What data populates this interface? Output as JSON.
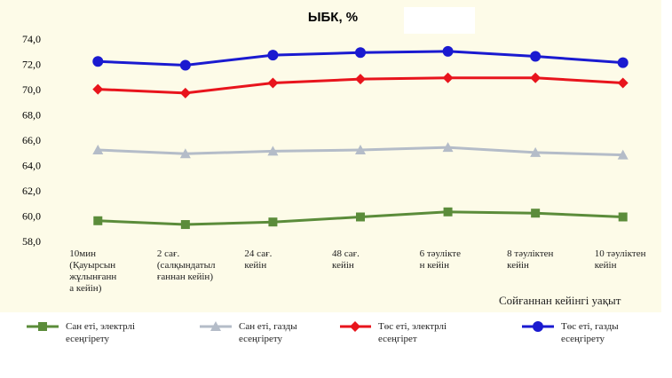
{
  "chart_data": {
    "type": "line",
    "title": "ЫБК, %",
    "categories": [
      "10мин\n(Қауырсын\nжұлынғанн\nа кейін)",
      "2 сағ.\n(салқындатыл\nғаннан кейін)",
      "24 сағ.\nкейін",
      "48 сағ.\nкейін",
      "6 тәуліктe\nн кейін",
      "8 тәуліктен\nкейін",
      "10 тәуліктен\nкейін"
    ],
    "x_label": "Сойғаннан кейінгі уақыт",
    "ylim": [
      58,
      74
    ],
    "yticks": [
      {
        "value": 58,
        "label": "58,0"
      },
      {
        "value": 60,
        "label": "60,0"
      },
      {
        "value": 62,
        "label": "62,0"
      },
      {
        "value": 64,
        "label": "64,0"
      },
      {
        "value": 66,
        "label": "66,0"
      },
      {
        "value": 68,
        "label": "68,0"
      },
      {
        "value": 70,
        "label": "70,0"
      },
      {
        "value": 72,
        "label": "72,0"
      },
      {
        "value": 74,
        "label": "74,0"
      }
    ],
    "series": [
      {
        "name": "Сан еті, электрлі есеңгірету",
        "color": "#5b8c3a",
        "marker": "square",
        "values": [
          59.7,
          59.4,
          59.6,
          60.0,
          60.4,
          60.3,
          60.0
        ]
      },
      {
        "name": "Сан еті, газды есеңгірету",
        "color": "#b4bcc8",
        "marker": "triangle",
        "values": [
          65.3,
          65.0,
          65.2,
          65.3,
          65.5,
          65.1,
          64.9
        ]
      },
      {
        "name": "Төс еті, электрлі есеңгірет",
        "color": "#e8141c",
        "marker": "diamond",
        "values": [
          70.1,
          69.8,
          70.6,
          70.9,
          71.0,
          71.0,
          70.6
        ]
      },
      {
        "name": "Төс еті, газды есеңгірету",
        "color": "#1a1ad0",
        "marker": "circle",
        "values": [
          72.3,
          72.0,
          72.8,
          73.0,
          73.1,
          72.7,
          72.2
        ]
      }
    ]
  }
}
